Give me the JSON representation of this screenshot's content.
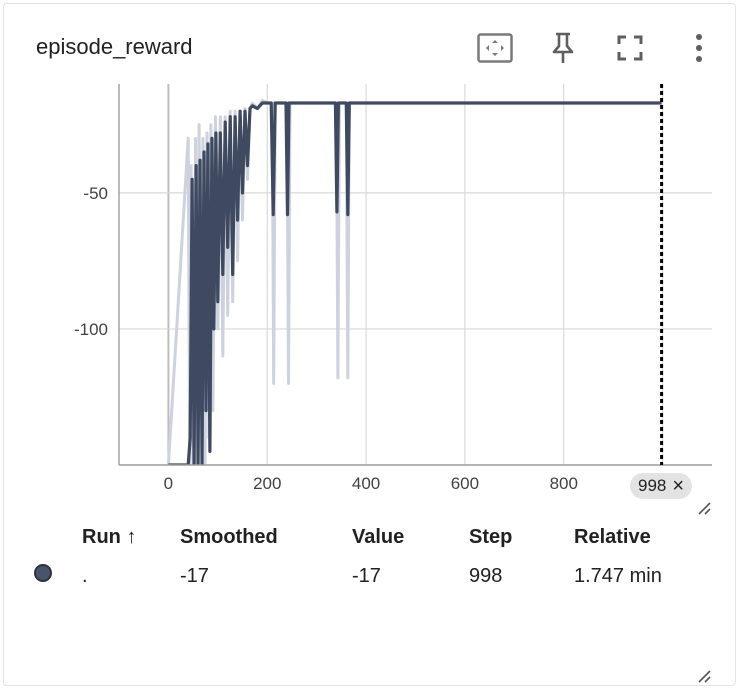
{
  "card": {
    "title": "episode_reward",
    "icons": [
      "fit-domain-icon",
      "pin-icon",
      "fullscreen-icon",
      "more-vert-icon"
    ]
  },
  "colors": {
    "raw_series": "#cdd2de",
    "smoothed_series": "#3f4a60",
    "gridline": "#d9d9d9",
    "axis": "#9e9e9e",
    "cursor": "#000000"
  },
  "chart_data": {
    "type": "line",
    "title": "episode_reward",
    "xlabel": "",
    "ylabel": "",
    "xlim": [
      -100,
      1100
    ],
    "ylim": [
      -150,
      -10
    ],
    "x_ticks": [
      0,
      200,
      400,
      600,
      800
    ],
    "y_ticks": [
      -50,
      -100,
      -150
    ],
    "grid": true,
    "cursor_step": 998,
    "series": [
      {
        "role": "raw",
        "x": [
          0,
          40,
          43,
          46,
          50,
          55,
          58,
          62,
          66,
          70,
          74,
          78,
          82,
          86,
          90,
          95,
          100,
          105,
          110,
          115,
          120,
          125,
          130,
          135,
          140,
          145,
          150,
          155,
          160,
          165,
          170,
          180,
          190,
          200,
          205,
          210,
          213,
          216,
          220,
          230,
          240,
          243,
          246,
          250,
          260,
          280,
          300,
          320,
          340,
          343,
          346,
          350,
          360,
          363,
          366,
          370,
          400,
          500,
          550,
          600,
          700,
          750,
          800,
          900,
          998
        ],
        "y": [
          -150,
          -30,
          -150,
          -40,
          -150,
          -30,
          -150,
          -25,
          -120,
          -30,
          -150,
          -28,
          -140,
          -25,
          -130,
          -22,
          -100,
          -22,
          -110,
          -22,
          -95,
          -20,
          -90,
          -20,
          -75,
          -20,
          -60,
          -19,
          -45,
          -19,
          -17,
          -19,
          -16,
          -17,
          -17,
          -17,
          -120,
          -17,
          -17,
          -17,
          -17,
          -120,
          -17,
          -17,
          -17,
          -17,
          -17,
          -17,
          -17,
          -118,
          -17,
          -17,
          -17,
          -118,
          -17,
          -17,
          -17,
          -17,
          -17,
          -17,
          -17,
          -17,
          -17,
          -17,
          -17
        ]
      },
      {
        "role": "smoothed",
        "x": [
          0,
          40,
          44,
          48,
          52,
          56,
          60,
          64,
          68,
          72,
          76,
          80,
          84,
          88,
          92,
          96,
          100,
          105,
          110,
          115,
          120,
          125,
          130,
          135,
          140,
          145,
          150,
          155,
          160,
          165,
          170,
          180,
          190,
          200,
          208,
          212,
          216,
          220,
          230,
          238,
          241,
          244,
          250,
          260,
          280,
          300,
          320,
          338,
          341,
          344,
          350,
          360,
          363,
          366,
          370,
          400,
          500,
          600,
          700,
          800,
          900,
          998
        ],
        "y": [
          -150,
          -150,
          -140,
          -45,
          -150,
          -40,
          -150,
          -38,
          -150,
          -35,
          -130,
          -32,
          -145,
          -30,
          -100,
          -28,
          -90,
          -28,
          -80,
          -24,
          -70,
          -22,
          -80,
          -22,
          -60,
          -20,
          -50,
          -20,
          -40,
          -19,
          -18,
          -19,
          -17,
          -17,
          -17,
          -58,
          -17,
          -17,
          -17,
          -17,
          -58,
          -17,
          -17,
          -17,
          -17,
          -17,
          -17,
          -17,
          -57,
          -17,
          -17,
          -17,
          -58,
          -17,
          -17,
          -17,
          -17,
          -17,
          -17,
          -17,
          -17,
          -17
        ]
      }
    ]
  },
  "cursor_tag": {
    "label": "998",
    "close": "×"
  },
  "table": {
    "headers": {
      "run": "Run",
      "run_sort": "↑",
      "smoothed": "Smoothed",
      "value": "Value",
      "step": "Step",
      "relative": "Relative"
    },
    "rows": [
      {
        "run": ".",
        "smoothed": "-17",
        "value": "-17",
        "step": "998",
        "relative": "1.747 min",
        "color": "#4a5468"
      }
    ]
  }
}
